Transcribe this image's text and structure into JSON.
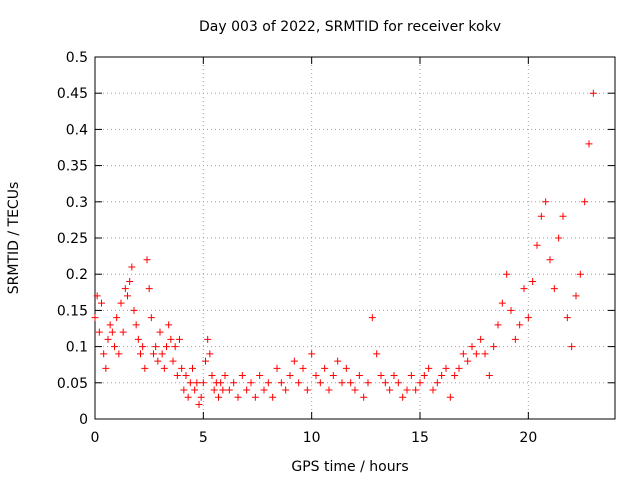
{
  "chart_data": {
    "type": "scatter",
    "title": "Day 003 of 2022, SRMTID for receiver kokv",
    "xlabel": "GPS time / hours",
    "ylabel": "SRMTID / TECUs",
    "xlim": [
      0,
      24
    ],
    "ylim": [
      0,
      0.5
    ],
    "xticks": [
      0,
      5,
      10,
      15,
      20
    ],
    "yticks": [
      0,
      0.05,
      0.1,
      0.15,
      0.2,
      0.25,
      0.3,
      0.35,
      0.4,
      0.45,
      0.5
    ],
    "grid": true,
    "marker": "+",
    "series": [
      {
        "name": "SRMTID",
        "color": "#ff0000",
        "points": [
          [
            0.0,
            0.14
          ],
          [
            0.1,
            0.17
          ],
          [
            0.2,
            0.12
          ],
          [
            0.3,
            0.16
          ],
          [
            0.4,
            0.09
          ],
          [
            0.5,
            0.07
          ],
          [
            0.6,
            0.11
          ],
          [
            0.7,
            0.13
          ],
          [
            0.8,
            0.12
          ],
          [
            0.9,
            0.1
          ],
          [
            1.0,
            0.14
          ],
          [
            1.1,
            0.09
          ],
          [
            1.2,
            0.16
          ],
          [
            1.3,
            0.12
          ],
          [
            1.4,
            0.18
          ],
          [
            1.5,
            0.17
          ],
          [
            1.6,
            0.19
          ],
          [
            1.7,
            0.21
          ],
          [
            1.8,
            0.15
          ],
          [
            1.9,
            0.13
          ],
          [
            2.0,
            0.11
          ],
          [
            2.1,
            0.09
          ],
          [
            2.2,
            0.1
          ],
          [
            2.3,
            0.07
          ],
          [
            2.4,
            0.22
          ],
          [
            2.5,
            0.18
          ],
          [
            2.6,
            0.14
          ],
          [
            2.7,
            0.09
          ],
          [
            2.8,
            0.1
          ],
          [
            2.9,
            0.08
          ],
          [
            3.0,
            0.12
          ],
          [
            3.1,
            0.09
          ],
          [
            3.2,
            0.07
          ],
          [
            3.3,
            0.1
          ],
          [
            3.4,
            0.13
          ],
          [
            3.5,
            0.11
          ],
          [
            3.6,
            0.08
          ],
          [
            3.7,
            0.1
          ],
          [
            3.8,
            0.06
          ],
          [
            3.9,
            0.11
          ],
          [
            4.0,
            0.07
          ],
          [
            4.1,
            0.04
          ],
          [
            4.2,
            0.06
          ],
          [
            4.3,
            0.03
          ],
          [
            4.4,
            0.05
          ],
          [
            4.5,
            0.07
          ],
          [
            4.6,
            0.04
          ],
          [
            4.7,
            0.05
          ],
          [
            4.8,
            0.02
          ],
          [
            4.9,
            0.03
          ],
          [
            5.0,
            0.05
          ],
          [
            5.1,
            0.08
          ],
          [
            5.2,
            0.11
          ],
          [
            5.3,
            0.09
          ],
          [
            5.4,
            0.06
          ],
          [
            5.5,
            0.04
          ],
          [
            5.6,
            0.05
          ],
          [
            5.7,
            0.03
          ],
          [
            5.8,
            0.05
          ],
          [
            5.9,
            0.04
          ],
          [
            6.0,
            0.06
          ],
          [
            6.2,
            0.04
          ],
          [
            6.4,
            0.05
          ],
          [
            6.6,
            0.03
          ],
          [
            6.8,
            0.06
          ],
          [
            7.0,
            0.04
          ],
          [
            7.2,
            0.05
          ],
          [
            7.4,
            0.03
          ],
          [
            7.6,
            0.06
          ],
          [
            7.8,
            0.04
          ],
          [
            8.0,
            0.05
          ],
          [
            8.2,
            0.03
          ],
          [
            8.4,
            0.07
          ],
          [
            8.6,
            0.05
          ],
          [
            8.8,
            0.04
          ],
          [
            9.0,
            0.06
          ],
          [
            9.2,
            0.08
          ],
          [
            9.4,
            0.05
          ],
          [
            9.6,
            0.07
          ],
          [
            9.8,
            0.04
          ],
          [
            10.0,
            0.09
          ],
          [
            10.2,
            0.06
          ],
          [
            10.4,
            0.05
          ],
          [
            10.6,
            0.07
          ],
          [
            10.8,
            0.04
          ],
          [
            11.0,
            0.06
          ],
          [
            11.2,
            0.08
          ],
          [
            11.4,
            0.05
          ],
          [
            11.6,
            0.07
          ],
          [
            11.8,
            0.05
          ],
          [
            12.0,
            0.04
          ],
          [
            12.2,
            0.06
          ],
          [
            12.4,
            0.03
          ],
          [
            12.6,
            0.05
          ],
          [
            12.8,
            0.14
          ],
          [
            13.0,
            0.09
          ],
          [
            13.2,
            0.06
          ],
          [
            13.4,
            0.05
          ],
          [
            13.6,
            0.04
          ],
          [
            13.8,
            0.06
          ],
          [
            14.0,
            0.05
          ],
          [
            14.2,
            0.03
          ],
          [
            14.4,
            0.04
          ],
          [
            14.6,
            0.06
          ],
          [
            14.8,
            0.04
          ],
          [
            15.0,
            0.05
          ],
          [
            15.2,
            0.06
          ],
          [
            15.4,
            0.07
          ],
          [
            15.6,
            0.04
          ],
          [
            15.8,
            0.05
          ],
          [
            16.0,
            0.06
          ],
          [
            16.2,
            0.07
          ],
          [
            16.4,
            0.03
          ],
          [
            16.6,
            0.06
          ],
          [
            16.8,
            0.07
          ],
          [
            17.0,
            0.09
          ],
          [
            17.2,
            0.08
          ],
          [
            17.4,
            0.1
          ],
          [
            17.6,
            0.09
          ],
          [
            17.8,
            0.11
          ],
          [
            18.0,
            0.09
          ],
          [
            18.2,
            0.06
          ],
          [
            18.4,
            0.1
          ],
          [
            18.6,
            0.13
          ],
          [
            18.8,
            0.16
          ],
          [
            19.0,
            0.2
          ],
          [
            19.2,
            0.15
          ],
          [
            19.4,
            0.11
          ],
          [
            19.6,
            0.13
          ],
          [
            19.8,
            0.18
          ],
          [
            20.0,
            0.14
          ],
          [
            20.2,
            0.19
          ],
          [
            20.4,
            0.24
          ],
          [
            20.6,
            0.28
          ],
          [
            20.8,
            0.3
          ],
          [
            21.0,
            0.22
          ],
          [
            21.2,
            0.18
          ],
          [
            21.4,
            0.25
          ],
          [
            21.6,
            0.28
          ],
          [
            21.8,
            0.14
          ],
          [
            22.0,
            0.1
          ],
          [
            22.2,
            0.17
          ],
          [
            22.4,
            0.2
          ],
          [
            22.6,
            0.3
          ],
          [
            22.8,
            0.38
          ],
          [
            23.0,
            0.45
          ]
        ]
      }
    ]
  }
}
